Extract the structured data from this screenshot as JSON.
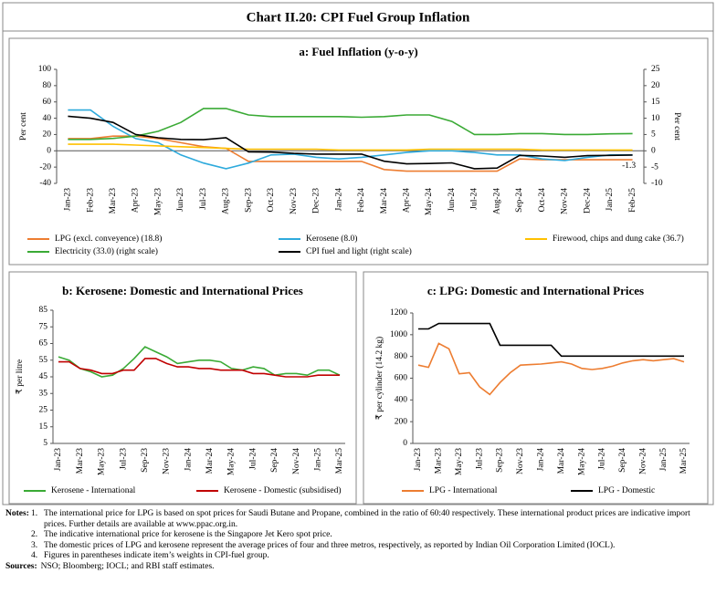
{
  "header": {
    "title": "Chart II.20: CPI Fuel Group Inflation"
  },
  "chart_data": [
    {
      "type": "line",
      "title": "a: Fuel Inflation (y-o-y)",
      "ylabel": "Per cent",
      "y2label": "Per cent",
      "categories": [
        "Jan-23",
        "Feb-23",
        "Mar-23",
        "Apr-23",
        "May-23",
        "Jun-23",
        "Jul-23",
        "Aug-23",
        "Sep-23",
        "Oct-23",
        "Nov-23",
        "Dec-23",
        "Jan-24",
        "Feb-24",
        "Mar-24",
        "Apr-24",
        "May-24",
        "Jun-24",
        "Jul-24",
        "Aug-24",
        "Sep-24",
        "Oct-24",
        "Nov-24",
        "Dec-24",
        "Jan-25",
        "Feb-25"
      ],
      "ylim": [
        -40,
        100
      ],
      "yticks": [
        -40,
        -20,
        0,
        20,
        40,
        60,
        80,
        100
      ],
      "y2lim": [
        -10,
        25
      ],
      "y2ticks": [
        -10,
        -5,
        0,
        5,
        10,
        15,
        20,
        25
      ],
      "series": [
        {
          "name": "LPG (excl. conveyence) (18.8)",
          "color": "#ed7d31",
          "values": [
            15,
            15,
            18,
            18,
            15,
            10,
            5,
            3,
            -13,
            -13,
            -13,
            -13,
            -13,
            -13,
            -23,
            -25,
            -25,
            -25,
            -25,
            -25,
            -10,
            -11,
            -11,
            -11,
            -11,
            -11
          ]
        },
        {
          "name": "Kerosene (8.0)",
          "color": "#2eaadc",
          "values": [
            50,
            50,
            30,
            15,
            10,
            -5,
            -15,
            -22,
            -15,
            -5,
            -4,
            -8,
            -10,
            -8,
            -5,
            -2,
            0,
            0,
            -2,
            -5,
            -5,
            -10,
            -12,
            -8,
            -5,
            -5
          ]
        },
        {
          "name": "Firewood, chips and dung cake (36.7)",
          "color": "#ffc000",
          "values": [
            8,
            8,
            8,
            7,
            6,
            5,
            4,
            3,
            2,
            2,
            2,
            2,
            1,
            1,
            1,
            1,
            2,
            2,
            2,
            2,
            2,
            1,
            1,
            1,
            1,
            1
          ]
        },
        {
          "name": "Electricity (33.0) (right scale)",
          "color": "#3aaa35",
          "axis": "y2",
          "values": [
            3.5,
            3.5,
            3.8,
            4.5,
            6,
            8.7,
            13,
            13,
            11,
            10.5,
            10.5,
            10.5,
            10.5,
            10.3,
            10.5,
            11,
            11,
            9,
            5,
            5,
            5.3,
            5.3,
            5,
            5,
            5.2,
            5.3
          ]
        },
        {
          "name": "CPI fuel and light (right scale)",
          "color": "#000000",
          "axis": "y2",
          "values": [
            10.6,
            10,
            8.7,
            5,
            4,
            3.5,
            3.4,
            4,
            -0.3,
            -0.4,
            -0.8,
            -1,
            -1,
            -1,
            -3.2,
            -4,
            -3.9,
            -3.7,
            -5.5,
            -5.3,
            -1.4,
            -1.6,
            -2,
            -1.5,
            -1.4,
            -1.3
          ]
        }
      ],
      "annotation": "-1.3"
    },
    {
      "type": "line",
      "title": "b: Kerosene: Domestic and International Prices",
      "ylabel": "₹ per litre",
      "categories": [
        "Jan-23",
        null,
        "Mar-23",
        null,
        "May-23",
        null,
        "Jul-23",
        null,
        "Sep-23",
        null,
        "Nov-23",
        null,
        "Jan-24",
        null,
        "Mar-24",
        null,
        "May-24",
        null,
        "Jul-24",
        null,
        "Sep-24",
        null,
        "Nov-24",
        null,
        "Jan-25",
        null,
        "Mar-25"
      ],
      "ylim": [
        5,
        85
      ],
      "yticks": [
        5,
        15,
        25,
        35,
        45,
        55,
        65,
        75,
        85
      ],
      "series": [
        {
          "name": "Kerosene - International",
          "color": "#3aaa35",
          "values": [
            57,
            55,
            50,
            48,
            45,
            46,
            50,
            56,
            63,
            60,
            57,
            53,
            54,
            55,
            55,
            54,
            50,
            49,
            51,
            50,
            46,
            47,
            47,
            46,
            49,
            49,
            46
          ]
        },
        {
          "name": "Kerosene - Domestic (subsidised)",
          "color": "#c00000",
          "values": [
            54,
            54,
            50,
            49,
            47,
            47,
            49,
            49,
            56,
            56,
            53,
            51,
            51,
            50,
            50,
            49,
            49,
            49,
            47,
            47,
            46,
            45,
            45,
            45,
            46,
            46,
            46
          ]
        }
      ]
    },
    {
      "type": "line",
      "title": "c: LPG: Domestic and International Prices",
      "ylabel": "₹ per cylinder (14.2 kg)",
      "categories": [
        "Jan-23",
        null,
        "Mar-23",
        null,
        "May-23",
        null,
        "Jul-23",
        null,
        "Sep-23",
        null,
        "Nov-23",
        null,
        "Jan-24",
        null,
        "Mar-24",
        null,
        "May-24",
        null,
        "Jul-24",
        null,
        "Sep-24",
        null,
        "Nov-24",
        null,
        "Jan-25",
        null,
        "Mar-25"
      ],
      "ylim": [
        0,
        1200
      ],
      "yticks": [
        0,
        200,
        400,
        600,
        800,
        1000,
        1200
      ],
      "series": [
        {
          "name": "LPG - International",
          "color": "#ed7d31",
          "values": [
            720,
            700,
            920,
            870,
            640,
            650,
            520,
            450,
            560,
            650,
            720,
            725,
            730,
            740,
            750,
            730,
            690,
            680,
            690,
            710,
            740,
            760,
            770,
            760,
            770,
            780,
            750
          ]
        },
        {
          "name": "LPG - Domestic",
          "color": "#000000",
          "values": [
            1053,
            1053,
            1103,
            1103,
            1103,
            1103,
            1103,
            1103,
            903,
            903,
            903,
            903,
            903,
            903,
            803,
            803,
            803,
            803,
            803,
            803,
            803,
            803,
            803,
            803,
            803,
            803,
            803
          ]
        }
      ]
    }
  ],
  "notes": {
    "label": "Notes:",
    "items": [
      {
        "num": "1.",
        "text": "The international price for LPG is based on spot prices for Saudi Butane and Propane, combined in the ratio of 60:40 respectively. These international product prices are indicative import prices. Further details are available at www.ppac.org.in."
      },
      {
        "num": "2.",
        "text": "The indicative international price for kerosene is the Singapore Jet Kero spot price."
      },
      {
        "num": "3.",
        "text": "The domestic prices of LPG and kerosene represent the average prices of four and three metros, respectively, as reported by Indian Oil Corporation Limited (IOCL)."
      },
      {
        "num": "4.",
        "text": "Figures in parentheses indicate item’s weights in CPI-fuel group."
      }
    ]
  },
  "sources": {
    "label": "Sources:",
    "text": "NSO; Bloomberg; IOCL; and RBI staff estimates."
  }
}
